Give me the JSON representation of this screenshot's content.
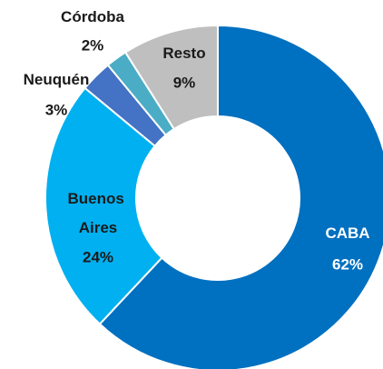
{
  "chart_data": {
    "type": "donut",
    "categories": [
      "CABA",
      "Buenos Aires",
      "Neuquén",
      "Córdoba",
      "Resto"
    ],
    "values": [
      62,
      24,
      3,
      2,
      9
    ],
    "value_labels": [
      "62%",
      "24%",
      "3%",
      "2%",
      "9%"
    ],
    "colors": [
      "#0070c0",
      "#00b0f0",
      "#4472c4",
      "#4bacc6",
      "#bfbfbf"
    ]
  }
}
